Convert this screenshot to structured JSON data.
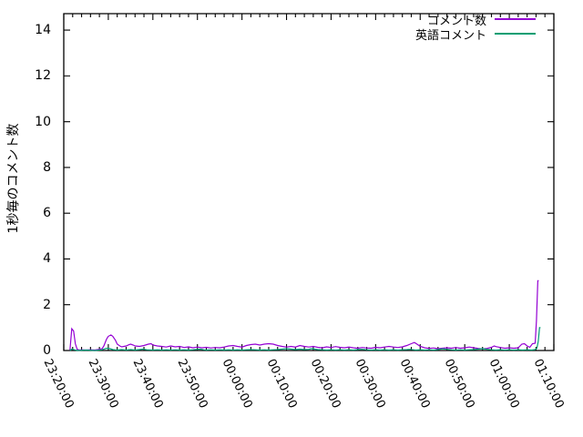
{
  "chart_data": {
    "type": "line",
    "title": "",
    "xlabel": "",
    "ylabel": "1秒毎のコメント数",
    "background": "#ffffff",
    "border_color": "#000000",
    "grid": false,
    "legend_position": "top-right-inside",
    "x_unit": "minutes since 23:20:00",
    "xlim_minutes": [
      0,
      110
    ],
    "ylim": [
      0,
      14.72
    ],
    "ytick_values": [
      0,
      2,
      4,
      6,
      8,
      10,
      12,
      14
    ],
    "xtick_labels": [
      "23:20:00",
      "23:30:00",
      "23:40:00",
      "23:50:00",
      "00:00:00",
      "00:10:00",
      "00:20:00",
      "00:30:00",
      "00:40:00",
      "00:50:00",
      "01:00:00",
      "01:10:00"
    ],
    "xtick_interval_minutes": 10,
    "x_minor_tick_minutes": 2,
    "series": [
      {
        "name": "コメント数",
        "color": "#9400d3",
        "points": [
          [
            1.4,
            0.02
          ],
          [
            1.8,
            0.95
          ],
          [
            2.2,
            0.85
          ],
          [
            2.6,
            0.3
          ],
          [
            3,
            0.05
          ],
          [
            3.5,
            0.02
          ],
          [
            4,
            0.03
          ],
          [
            5,
            0.02
          ],
          [
            6,
            0.03
          ],
          [
            7,
            0.02
          ],
          [
            8,
            0.05
          ],
          [
            8.6,
            0.08
          ],
          [
            9,
            0.2
          ],
          [
            9.6,
            0.5
          ],
          [
            10,
            0.62
          ],
          [
            10.6,
            0.68
          ],
          [
            11,
            0.62
          ],
          [
            11.6,
            0.45
          ],
          [
            12,
            0.28
          ],
          [
            12.6,
            0.2
          ],
          [
            13,
            0.16
          ],
          [
            14,
            0.2
          ],
          [
            14.6,
            0.25
          ],
          [
            15,
            0.28
          ],
          [
            15.6,
            0.24
          ],
          [
            16,
            0.2
          ],
          [
            17,
            0.18
          ],
          [
            18,
            0.22
          ],
          [
            19,
            0.28
          ],
          [
            19.6,
            0.3
          ],
          [
            20,
            0.24
          ],
          [
            21,
            0.2
          ],
          [
            22,
            0.18
          ],
          [
            23,
            0.15
          ],
          [
            24,
            0.2
          ],
          [
            25,
            0.16
          ],
          [
            26,
            0.18
          ],
          [
            27,
            0.13
          ],
          [
            28,
            0.16
          ],
          [
            29,
            0.12
          ],
          [
            30,
            0.15
          ],
          [
            31,
            0.12
          ],
          [
            32,
            0.14
          ],
          [
            33,
            0.11
          ],
          [
            34,
            0.13
          ],
          [
            35,
            0.12
          ],
          [
            36,
            0.15
          ],
          [
            37,
            0.2
          ],
          [
            38,
            0.22
          ],
          [
            39,
            0.18
          ],
          [
            40,
            0.15
          ],
          [
            41,
            0.22
          ],
          [
            42,
            0.26
          ],
          [
            43,
            0.28
          ],
          [
            44,
            0.24
          ],
          [
            45,
            0.28
          ],
          [
            46,
            0.3
          ],
          [
            47,
            0.28
          ],
          [
            48,
            0.22
          ],
          [
            49,
            0.18
          ],
          [
            50,
            0.15
          ],
          [
            51,
            0.18
          ],
          [
            52,
            0.15
          ],
          [
            53,
            0.22
          ],
          [
            54,
            0.18
          ],
          [
            55,
            0.15
          ],
          [
            56,
            0.18
          ],
          [
            57,
            0.14
          ],
          [
            58,
            0.12
          ],
          [
            59,
            0.16
          ],
          [
            60,
            0.13
          ],
          [
            61,
            0.17
          ],
          [
            62,
            0.14
          ],
          [
            63,
            0.12
          ],
          [
            64,
            0.15
          ],
          [
            65,
            0.12
          ],
          [
            66,
            0.1
          ],
          [
            67,
            0.13
          ],
          [
            68,
            0.11
          ],
          [
            69,
            0.1
          ],
          [
            70,
            0.14
          ],
          [
            71,
            0.12
          ],
          [
            72,
            0.15
          ],
          [
            73,
            0.18
          ],
          [
            74,
            0.15
          ],
          [
            75,
            0.13
          ],
          [
            76,
            0.16
          ],
          [
            77,
            0.22
          ],
          [
            78,
            0.3
          ],
          [
            78.7,
            0.35
          ],
          [
            79.3,
            0.28
          ],
          [
            80,
            0.18
          ],
          [
            81,
            0.12
          ],
          [
            82,
            0.09
          ],
          [
            83,
            0.11
          ],
          [
            84,
            0.08
          ],
          [
            85,
            0.1
          ],
          [
            86,
            0.12
          ],
          [
            87,
            0.1
          ],
          [
            88,
            0.13
          ],
          [
            89,
            0.1
          ],
          [
            90,
            0.12
          ],
          [
            91,
            0.15
          ],
          [
            92,
            0.12
          ],
          [
            93,
            0.09
          ],
          [
            94,
            0.07
          ],
          [
            95,
            0.09
          ],
          [
            96,
            0.14
          ],
          [
            96.6,
            0.2
          ],
          [
            97,
            0.17
          ],
          [
            98,
            0.13
          ],
          [
            99,
            0.1
          ],
          [
            100,
            0.12
          ],
          [
            101,
            0.1
          ],
          [
            102,
            0.12
          ],
          [
            102.8,
            0.28
          ],
          [
            103.4,
            0.3
          ],
          [
            104,
            0.2
          ],
          [
            104.6,
            0.14
          ],
          [
            105.2,
            0.3
          ],
          [
            105.8,
            0.32
          ],
          [
            106.1,
            1.3
          ],
          [
            106.4,
            3.05
          ],
          [
            106.6,
            3.05
          ]
        ]
      },
      {
        "name": "英語コメント",
        "color": "#009e73",
        "points": [
          [
            1.4,
            0.0
          ],
          [
            1.8,
            0.06
          ],
          [
            2.4,
            0.03
          ],
          [
            3,
            0.0
          ],
          [
            5,
            0.02
          ],
          [
            7,
            0.0
          ],
          [
            8.6,
            0.03
          ],
          [
            9.6,
            0.1
          ],
          [
            10.4,
            0.08
          ],
          [
            11,
            0.04
          ],
          [
            12,
            0.02
          ],
          [
            13,
            0.04
          ],
          [
            14,
            0.02
          ],
          [
            15,
            0.04
          ],
          [
            16,
            0.02
          ],
          [
            17,
            0.04
          ],
          [
            17.8,
            0.06
          ],
          [
            18.6,
            0.03
          ],
          [
            20,
            0.02
          ],
          [
            21,
            0.03
          ],
          [
            22,
            0.02
          ],
          [
            23,
            0.03
          ],
          [
            24,
            0.02
          ],
          [
            25,
            0.03
          ],
          [
            26,
            0.02
          ],
          [
            27,
            0.03
          ],
          [
            28,
            0.02
          ],
          [
            29,
            0.03
          ],
          [
            30,
            0.05
          ],
          [
            30.7,
            0.06
          ],
          [
            31.4,
            0.03
          ],
          [
            32,
            0.02
          ],
          [
            33,
            0.03
          ],
          [
            34,
            0.02
          ],
          [
            35,
            0.03
          ],
          [
            36,
            0.02
          ],
          [
            37,
            0.03
          ],
          [
            38,
            0.02
          ],
          [
            39,
            0.03
          ],
          [
            40,
            0.02
          ],
          [
            41,
            0.03
          ],
          [
            42,
            0.04
          ],
          [
            43,
            0.03
          ],
          [
            44,
            0.02
          ],
          [
            45,
            0.03
          ],
          [
            46,
            0.02
          ],
          [
            47,
            0.03
          ],
          [
            48,
            0.04
          ],
          [
            49,
            0.06
          ],
          [
            50,
            0.08
          ],
          [
            51,
            0.06
          ],
          [
            52,
            0.04
          ],
          [
            53,
            0.06
          ],
          [
            54,
            0.04
          ],
          [
            55,
            0.05
          ],
          [
            55.6,
            0.08
          ],
          [
            56.3,
            0.06
          ],
          [
            57,
            0.04
          ],
          [
            58,
            0.03
          ],
          [
            59,
            0.02
          ],
          [
            60,
            0.03
          ],
          [
            61,
            0.02
          ],
          [
            62,
            0.03
          ],
          [
            63,
            0.02
          ],
          [
            64,
            0.03
          ],
          [
            65,
            0.02
          ],
          [
            66,
            0.04
          ],
          [
            66.9,
            0.05
          ],
          [
            68,
            0.03
          ],
          [
            69,
            0.02
          ],
          [
            70,
            0.03
          ],
          [
            71,
            0.02
          ],
          [
            72,
            0.03
          ],
          [
            73,
            0.02
          ],
          [
            74,
            0.03
          ],
          [
            75,
            0.02
          ],
          [
            76,
            0.03
          ],
          [
            77,
            0.04
          ],
          [
            77.7,
            0.05
          ],
          [
            78.5,
            0.03
          ],
          [
            79,
            0.02
          ],
          [
            80,
            0.03
          ],
          [
            81,
            0.02
          ],
          [
            82,
            0.03
          ],
          [
            83,
            0.02
          ],
          [
            84,
            0.04
          ],
          [
            85,
            0.07
          ],
          [
            86,
            0.05
          ],
          [
            87,
            0.03
          ],
          [
            88,
            0.02
          ],
          [
            89,
            0.03
          ],
          [
            90,
            0.02
          ],
          [
            91,
            0.03
          ],
          [
            92,
            0.04
          ],
          [
            93,
            0.06
          ],
          [
            94,
            0.08
          ],
          [
            95,
            0.05
          ],
          [
            96,
            0.03
          ],
          [
            97,
            0.02
          ],
          [
            98,
            0.03
          ],
          [
            99,
            0.02
          ],
          [
            100,
            0.03
          ],
          [
            101,
            0.02
          ],
          [
            102,
            0.03
          ],
          [
            103,
            0.02
          ],
          [
            104,
            0.03
          ],
          [
            105,
            0.02
          ],
          [
            105.8,
            0.04
          ],
          [
            106.2,
            0.1
          ],
          [
            106.5,
            0.4
          ],
          [
            106.8,
            1.0
          ],
          [
            107,
            1.0
          ]
        ]
      }
    ]
  }
}
